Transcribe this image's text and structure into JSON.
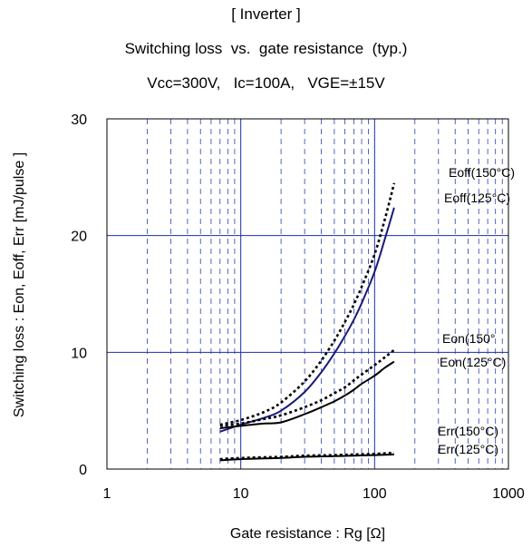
{
  "chart_data": {
    "type": "line",
    "title": "[ Inverter ]",
    "subtitle": "Switching loss  vs.  gate resistance  (typ.)",
    "conditions": "Vcc=300V,   Ic=100A,   VGE=±15V",
    "xlabel": "Gate resistance : Rg [Ω]",
    "ylabel": "Switching loss  : Eon, Eoff, Err  [mJ/pulse ]",
    "xscale": "log",
    "xlim": [
      1,
      1000
    ],
    "ylim": [
      0,
      30
    ],
    "xticks": [
      "1",
      "10",
      "100",
      "1000"
    ],
    "yticks": [
      "0",
      "10",
      "20",
      "30"
    ],
    "grid": true,
    "series": [
      {
        "name": "Eoff(150°C)",
        "style": "dotted",
        "color": "#000000",
        "x": [
          7,
          10,
          15,
          20,
          30,
          40,
          50,
          60,
          70,
          80,
          100,
          120,
          140
        ],
        "y": [
          3.8,
          4.2,
          4.9,
          5.7,
          7.5,
          9.3,
          11.0,
          12.6,
          14.1,
          15.6,
          18.4,
          21.5,
          24.5
        ]
      },
      {
        "name": "Eoff(125°C)",
        "style": "solid",
        "color": "#1a1a7a",
        "x": [
          7,
          10,
          15,
          20,
          30,
          40,
          50,
          60,
          70,
          80,
          100,
          120,
          140
        ],
        "y": [
          3.2,
          3.8,
          4.4,
          5.0,
          6.6,
          8.3,
          9.9,
          11.4,
          12.8,
          14.2,
          16.9,
          19.8,
          22.4
        ]
      },
      {
        "name": "Eon(150°",
        "style": "dotted",
        "color": "#000000",
        "x": [
          7,
          10,
          15,
          20,
          30,
          40,
          50,
          60,
          70,
          80,
          100,
          120,
          140
        ],
        "y": [
          3.7,
          3.9,
          4.3,
          4.6,
          5.3,
          5.9,
          6.5,
          7.0,
          7.6,
          8.1,
          8.9,
          9.6,
          10.2
        ]
      },
      {
        "name": "Eon(125°C)",
        "style": "solid",
        "color": "#000000",
        "x": [
          7,
          10,
          15,
          20,
          30,
          40,
          50,
          60,
          70,
          80,
          100,
          120,
          140
        ],
        "y": [
          3.5,
          3.7,
          3.9,
          4.0,
          4.7,
          5.3,
          5.8,
          6.3,
          6.8,
          7.3,
          8.0,
          8.7,
          9.2
        ]
      },
      {
        "name": "Err(150°C)",
        "style": "dotted",
        "color": "#000000",
        "x": [
          7,
          10,
          20,
          30,
          50,
          70,
          100,
          140
        ],
        "y": [
          0.85,
          0.95,
          1.05,
          1.15,
          1.2,
          1.25,
          1.3,
          1.4
        ]
      },
      {
        "name": "Err(125°C)",
        "style": "solid",
        "color": "#000000",
        "x": [
          7,
          10,
          20,
          30,
          50,
          70,
          100,
          140
        ],
        "y": [
          0.75,
          0.85,
          0.95,
          1.05,
          1.1,
          1.15,
          1.2,
          1.25
        ]
      }
    ]
  }
}
